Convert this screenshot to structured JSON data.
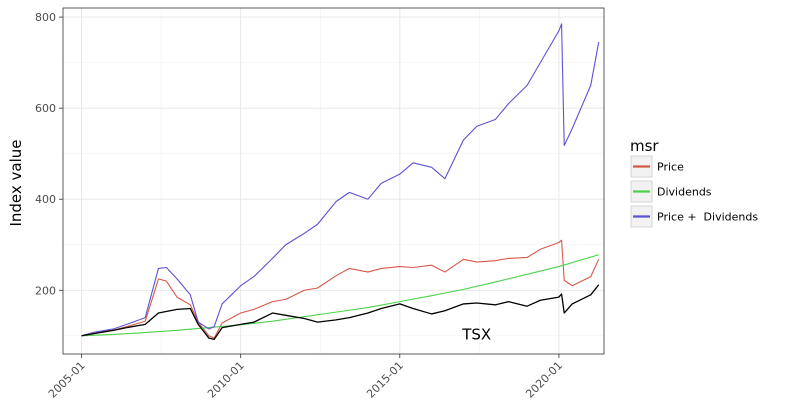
{
  "chart_data": {
    "type": "line",
    "title": "",
    "xlabel": "",
    "ylabel": "Index value",
    "xlim": [
      "2004-06-01",
      "2021-06-01"
    ],
    "ylim": [
      60,
      820
    ],
    "x_ticks": [
      "2005-01",
      "2010-01",
      "2015-01",
      "2020-01"
    ],
    "y_ticks": [
      200,
      400,
      600,
      800
    ],
    "grid": true,
    "legend": {
      "title": "msr",
      "position": "right"
    },
    "annotations": [
      {
        "text": "TSX",
        "x": "2017-06-01",
        "y": 103
      }
    ],
    "colors": {
      "Price": "#d6584a",
      "Dividends": "#4bd24b",
      "Price +  Dividends": "#5c53d4",
      "TSX": "#000000"
    },
    "series": [
      {
        "name": "Price",
        "x": [
          "2005-01",
          "2005-06",
          "2006-01",
          "2006-06",
          "2007-01",
          "2007-06",
          "2007-09",
          "2008-01",
          "2008-06",
          "2008-09",
          "2009-01",
          "2009-03",
          "2009-06",
          "2010-01",
          "2010-06",
          "2011-01",
          "2011-06",
          "2012-01",
          "2012-06",
          "2013-01",
          "2013-06",
          "2014-01",
          "2014-06",
          "2015-01",
          "2015-06",
          "2016-01",
          "2016-06",
          "2017-01",
          "2017-06",
          "2018-01",
          "2018-06",
          "2019-01",
          "2019-06",
          "2020-01",
          "2020-02",
          "2020-03",
          "2020-06",
          "2021-01",
          "2021-04"
        ],
        "y": [
          100,
          108,
          112,
          120,
          132,
          225,
          220,
          185,
          168,
          130,
          100,
          95,
          128,
          150,
          158,
          175,
          180,
          200,
          205,
          232,
          248,
          240,
          248,
          252,
          250,
          255,
          240,
          268,
          262,
          265,
          270,
          272,
          290,
          305,
          310,
          222,
          210,
          230,
          268
        ]
      },
      {
        "name": "Dividends",
        "x": [
          "2005-01",
          "2006-01",
          "2007-01",
          "2008-01",
          "2009-01",
          "2010-01",
          "2011-01",
          "2012-01",
          "2013-01",
          "2014-01",
          "2015-01",
          "2016-01",
          "2017-01",
          "2018-01",
          "2019-01",
          "2020-01",
          "2021-04"
        ],
        "y": [
          100,
          103,
          107,
          112,
          118,
          124,
          132,
          142,
          152,
          162,
          175,
          188,
          202,
          218,
          235,
          252,
          278
        ]
      },
      {
        "name": "Price +  Dividends",
        "x": [
          "2005-01",
          "2005-06",
          "2006-01",
          "2006-06",
          "2007-01",
          "2007-06",
          "2007-09",
          "2008-01",
          "2008-06",
          "2008-09",
          "2009-01",
          "2009-03",
          "2009-06",
          "2010-01",
          "2010-06",
          "2011-01",
          "2011-06",
          "2012-01",
          "2012-06",
          "2013-01",
          "2013-06",
          "2014-01",
          "2014-06",
          "2015-01",
          "2015-06",
          "2016-01",
          "2016-06",
          "2017-01",
          "2017-06",
          "2018-01",
          "2018-06",
          "2019-01",
          "2019-06",
          "2020-01",
          "2020-02",
          "2020-03",
          "2020-06",
          "2021-01",
          "2021-04"
        ],
        "y": [
          100,
          108,
          115,
          125,
          140,
          248,
          250,
          225,
          190,
          130,
          115,
          120,
          170,
          210,
          230,
          270,
          300,
          325,
          345,
          395,
          415,
          400,
          435,
          455,
          480,
          470,
          445,
          530,
          560,
          575,
          610,
          650,
          700,
          770,
          785,
          518,
          555,
          650,
          745
        ]
      },
      {
        "name": "TSX",
        "x": [
          "2005-01",
          "2005-06",
          "2006-01",
          "2006-06",
          "2007-01",
          "2007-06",
          "2008-01",
          "2008-06",
          "2008-09",
          "2009-01",
          "2009-03",
          "2009-06",
          "2010-01",
          "2010-06",
          "2011-01",
          "2011-06",
          "2012-01",
          "2012-06",
          "2013-01",
          "2013-06",
          "2014-01",
          "2014-06",
          "2015-01",
          "2015-06",
          "2016-01",
          "2016-06",
          "2017-01",
          "2017-06",
          "2018-01",
          "2018-06",
          "2019-01",
          "2019-06",
          "2020-01",
          "2020-02",
          "2020-03",
          "2020-06",
          "2021-01",
          "2021-04"
        ],
        "y": [
          100,
          105,
          112,
          118,
          125,
          150,
          158,
          160,
          125,
          95,
          92,
          118,
          125,
          130,
          150,
          145,
          138,
          130,
          135,
          140,
          150,
          160,
          170,
          160,
          148,
          155,
          170,
          172,
          168,
          175,
          165,
          178,
          185,
          192,
          150,
          170,
          190,
          212
        ]
      }
    ]
  }
}
